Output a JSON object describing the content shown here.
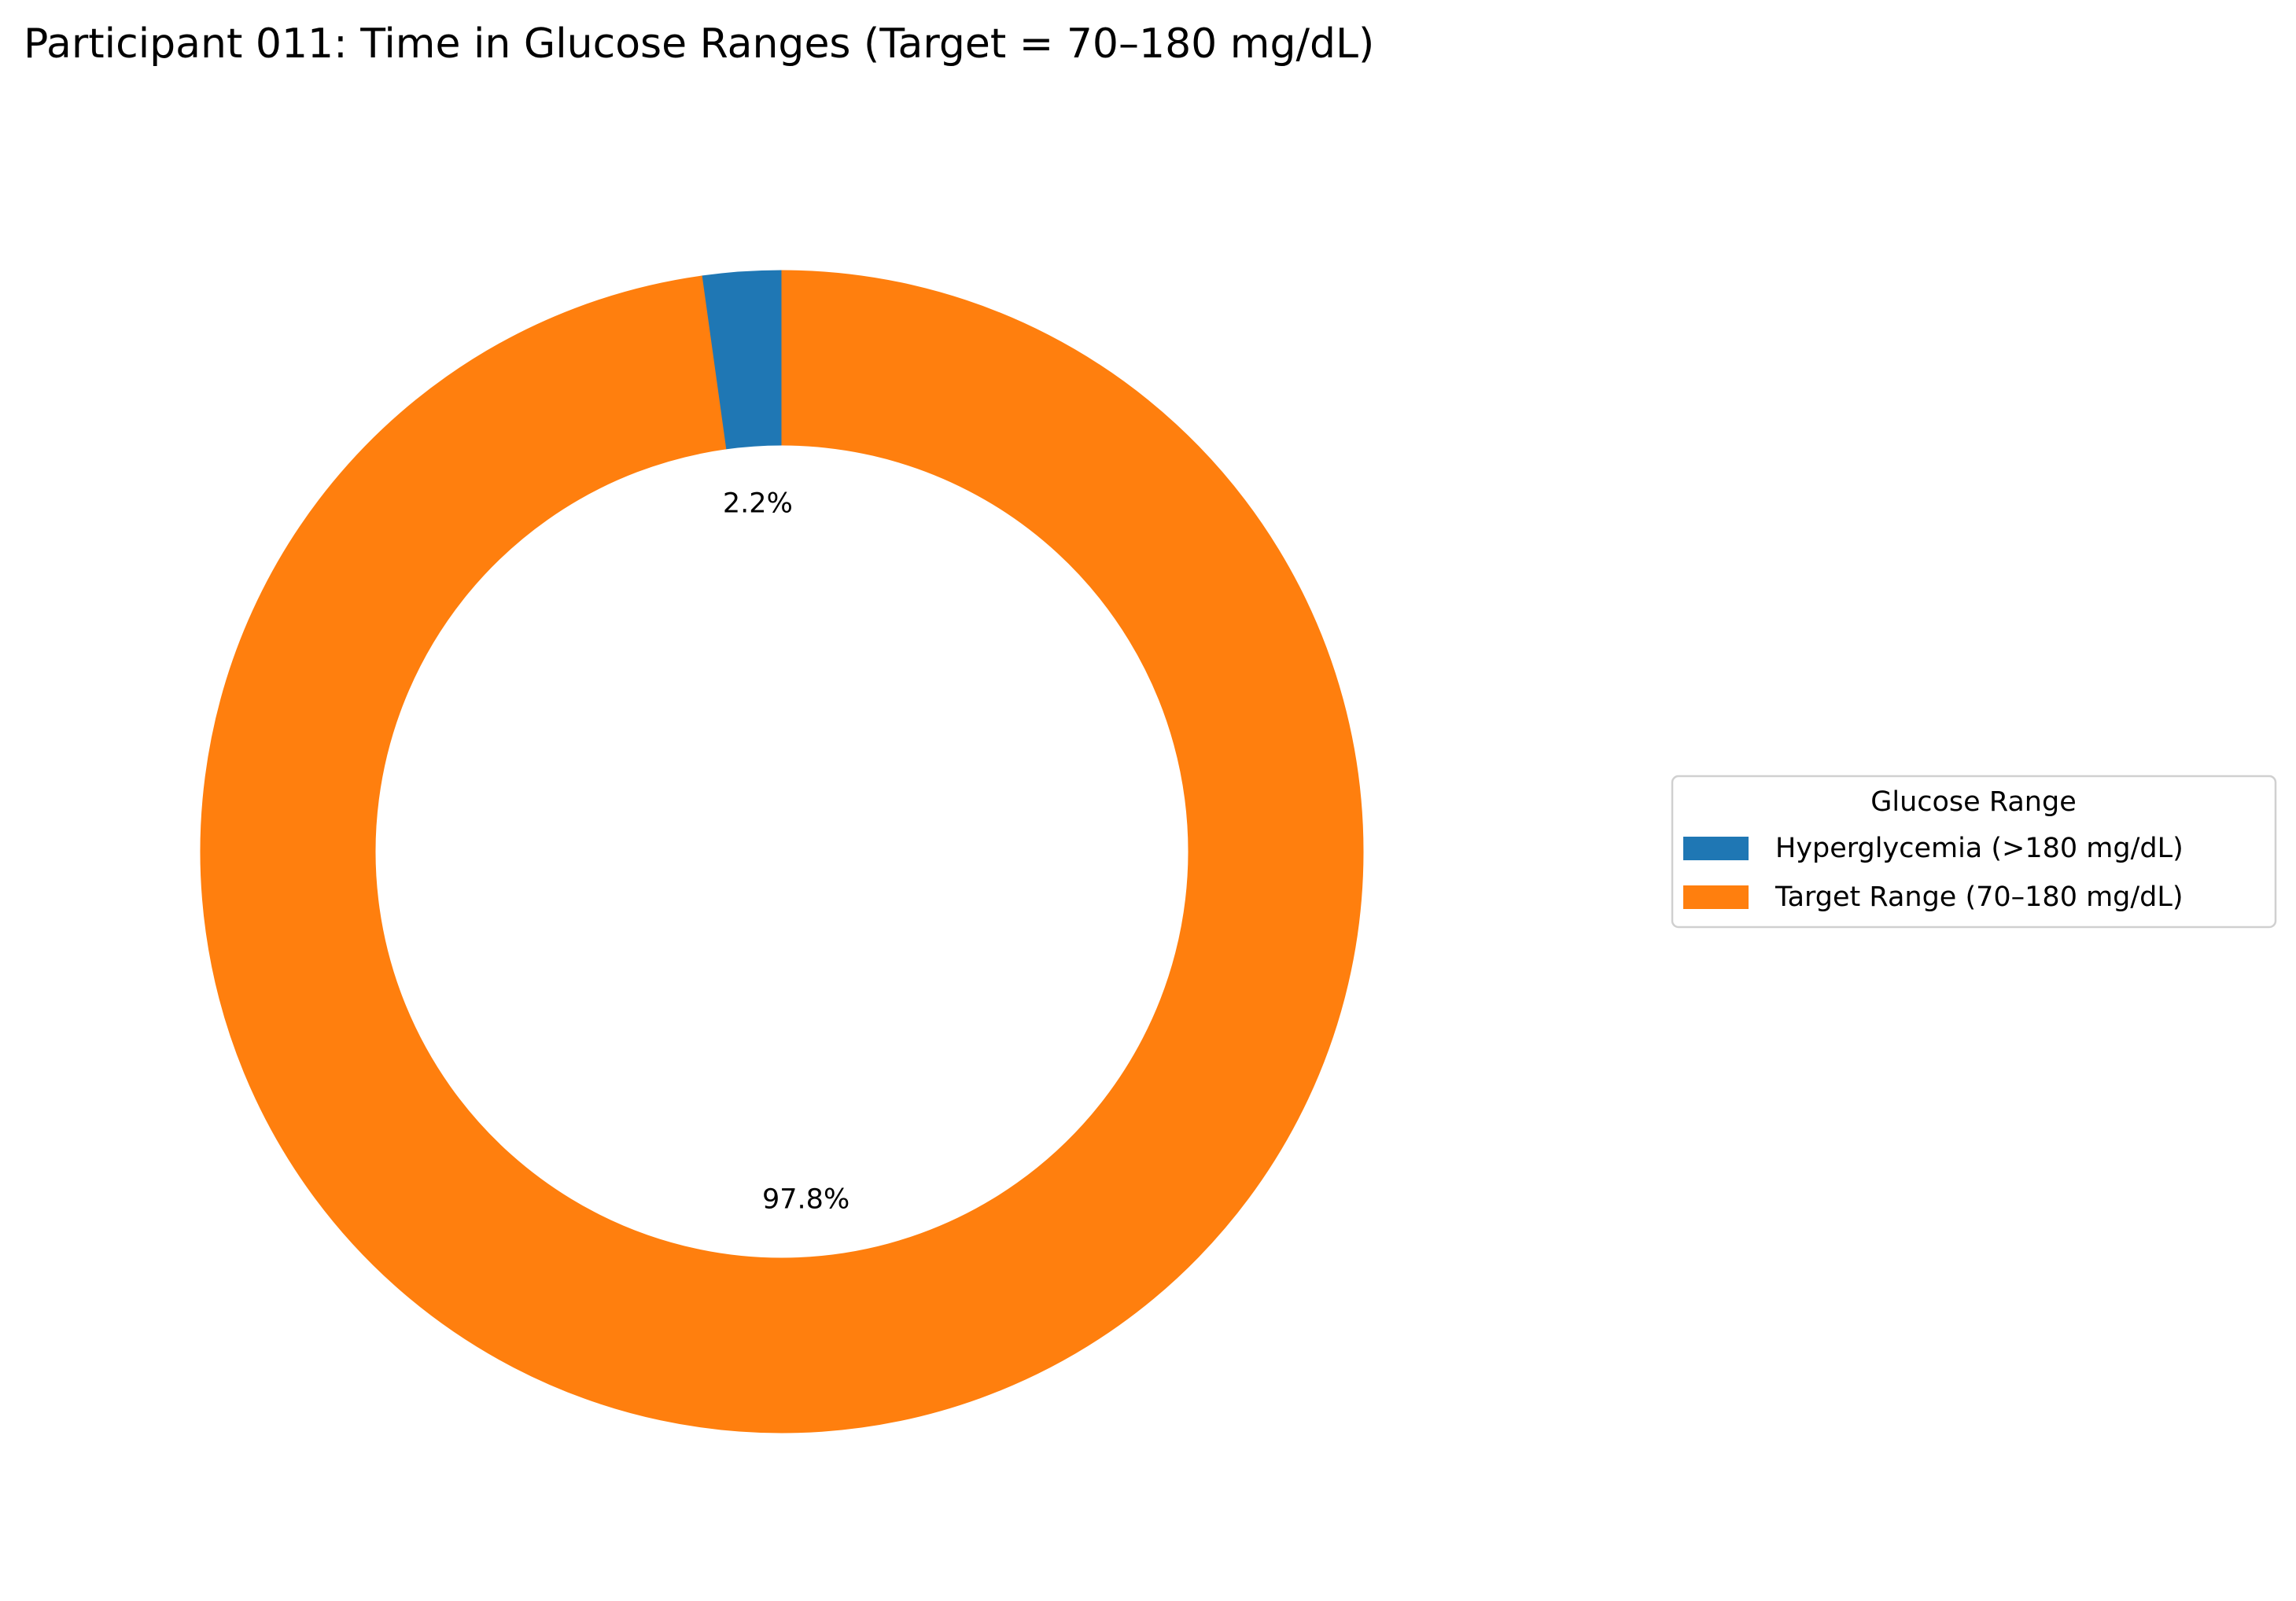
{
  "chart_data": {
    "type": "pie",
    "title": "Participant 011: Time in Glucose Ranges (Target = 70–180 mg/dL)",
    "variant": "donut",
    "slices": [
      {
        "label": "Hyperglycemia (>180 mg/dL)",
        "value": 2.2,
        "value_label": "2.2%",
        "color": "#1f77b4"
      },
      {
        "label": "Target Range (70–180 mg/dL)",
        "value": 97.8,
        "value_label": "97.8%",
        "color": "#ff7f0e"
      }
    ],
    "start_angle": "top",
    "direction": "counterclockwise",
    "legend": {
      "title": "Glucose Range",
      "placement": "center-right outside"
    }
  }
}
